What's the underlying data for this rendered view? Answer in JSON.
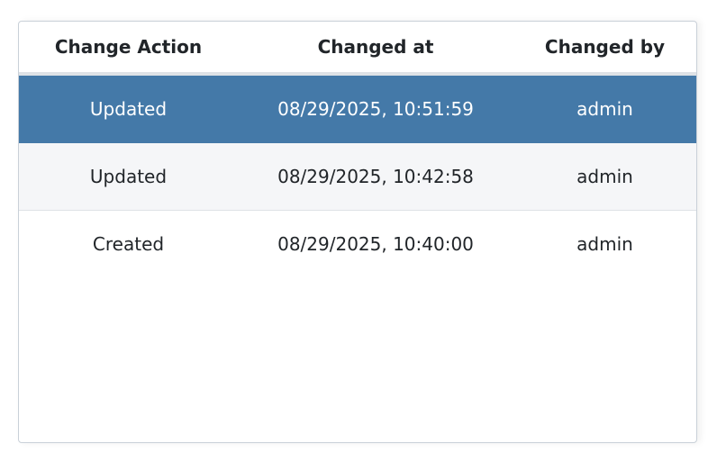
{
  "table": {
    "columns": [
      "Change Action",
      "Changed at",
      "Changed by"
    ],
    "rows": [
      {
        "action": "Updated",
        "changed_at": "08/29/2025, 10:51:59",
        "changed_by": "admin",
        "selected": true
      },
      {
        "action": "Updated",
        "changed_at": "08/29/2025, 10:42:58",
        "changed_by": "admin",
        "selected": false
      },
      {
        "action": "Created",
        "changed_at": "08/29/2025, 10:40:00",
        "changed_by": "admin",
        "selected": false
      }
    ]
  },
  "colors": {
    "selected_row": "#4479a8",
    "striped_row": "#f5f6f8",
    "header_border": "#dee2e6"
  }
}
